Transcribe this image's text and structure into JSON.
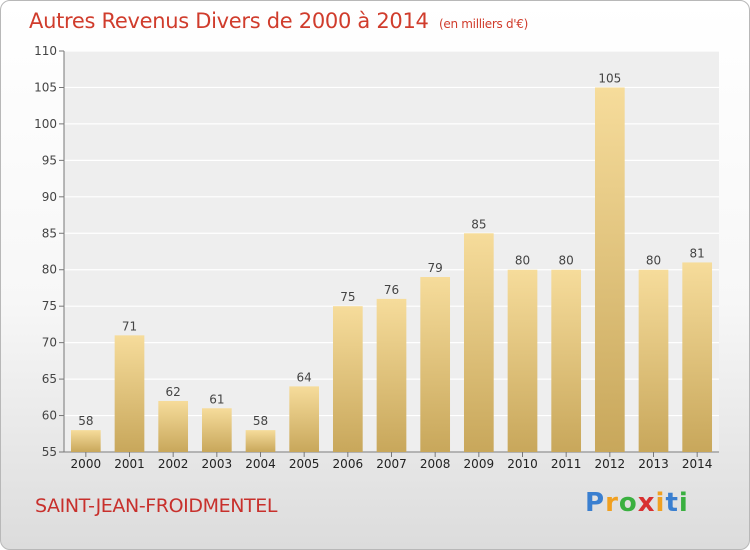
{
  "title": "Autres Revenus Divers de 2000 à 2014",
  "unit_note": "(en milliers d'€)",
  "commune": "SAINT-JEAN-FROIDMENTEL",
  "brand": {
    "text": "Proxiti",
    "letters": [
      {
        "char": "P",
        "color": "#3a7fd0"
      },
      {
        "char": "r",
        "color": "#f0a020"
      },
      {
        "char": "o",
        "color": "#3ab040"
      },
      {
        "char": "x",
        "color": "#d83030"
      },
      {
        "char": "i",
        "color": "#f0a020"
      },
      {
        "char": "t",
        "color": "#3a7fd0"
      },
      {
        "char": "i",
        "color": "#3ab040"
      }
    ]
  },
  "colors": {
    "bar_top": "#f6dc9b",
    "bar_bottom": "#c8a75b",
    "title": "#d03c2c",
    "grid": "#ffffff"
  },
  "chart_data": {
    "type": "bar",
    "categories": [
      "2000",
      "2001",
      "2002",
      "2003",
      "2004",
      "2005",
      "2006",
      "2007",
      "2008",
      "2009",
      "2010",
      "2011",
      "2012",
      "2013",
      "2014"
    ],
    "values": [
      58,
      71,
      62,
      61,
      58,
      64,
      75,
      76,
      79,
      85,
      80,
      80,
      105,
      80,
      81
    ],
    "data_labels": [
      "58",
      "71",
      "62",
      "61",
      "58",
      "64",
      "75",
      "76",
      "79",
      "85",
      "80",
      "80",
      "105",
      "80",
      "81"
    ],
    "ylim": [
      55,
      110
    ],
    "yticks": [
      55,
      60,
      65,
      70,
      75,
      80,
      85,
      90,
      95,
      100,
      105,
      110
    ],
    "ytick_labels": [
      "55",
      "60",
      "65",
      "70",
      "75",
      "80",
      "85",
      "90",
      "95",
      "100",
      "105",
      "110"
    ],
    "grid": true,
    "xlabel": "",
    "ylabel": ""
  }
}
